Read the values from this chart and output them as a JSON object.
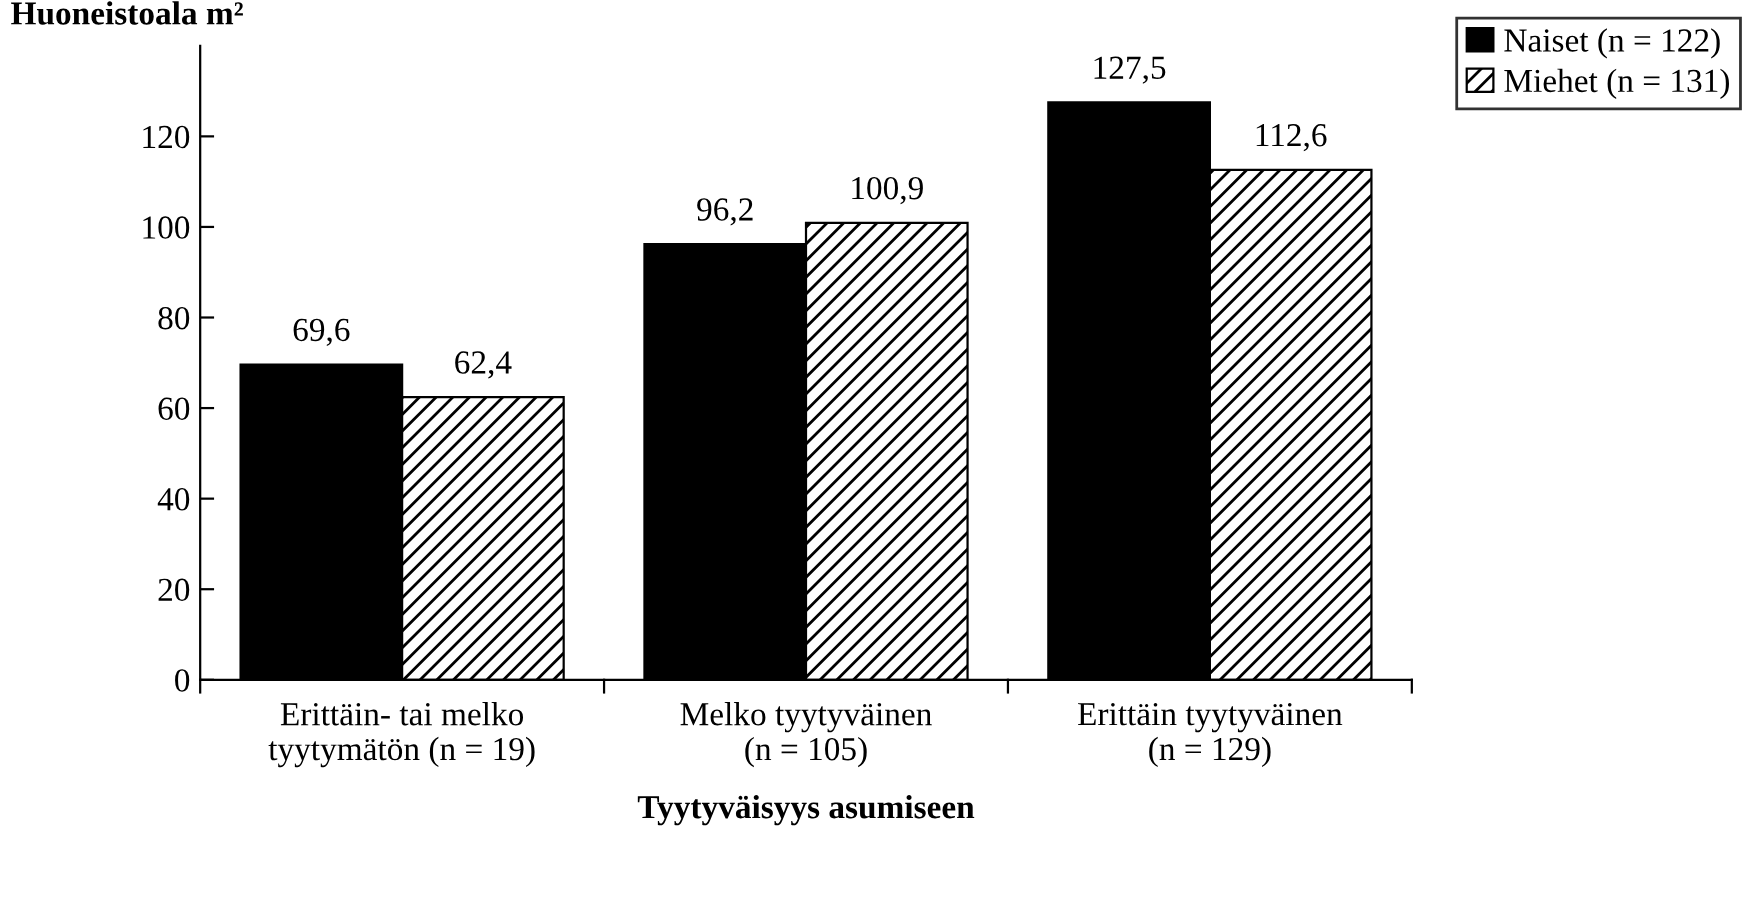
{
  "chart_data": {
    "type": "bar",
    "ylabel": "Huoneistoala m²",
    "xlabel": "Tyytyväisyys asumiseen",
    "categories": [
      "Erittäin- tai melko\ntyytymätön (n = 19)",
      "Melko tyytyväinen\n(n = 105)",
      "Erittäin tyytyväinen\n(n = 129)"
    ],
    "series": [
      {
        "name": "Naiset (n = 122)",
        "color": "#000000",
        "values": [
          69.6,
          96.2,
          127.5
        ],
        "value_labels": [
          "69,6",
          "96,2",
          "127,5"
        ]
      },
      {
        "name": "Miehet (n = 131)",
        "color": "#000000",
        "values": [
          62.4,
          100.9,
          112.6
        ],
        "value_labels": [
          "62,4",
          "100,9",
          "112,6"
        ]
      }
    ],
    "ylim": [
      0,
      140
    ],
    "yticks": [
      0,
      20,
      40,
      60,
      80,
      100,
      120
    ],
    "grid": false,
    "legend": "top right"
  }
}
